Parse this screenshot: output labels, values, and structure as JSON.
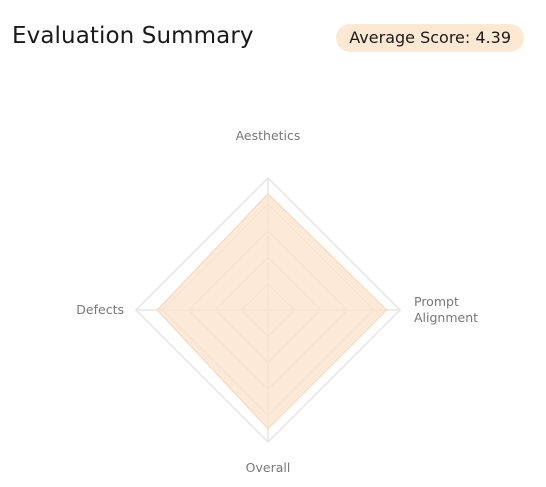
{
  "header": {
    "title": "Evaluation Summary",
    "badge_label": "Average Score: 4.39"
  },
  "chart_data": {
    "type": "radar",
    "axes": [
      "Aesthetics",
      "Prompt Alignment",
      "Overall",
      "Defects"
    ],
    "axis_label_lines": [
      [
        "Aesthetics"
      ],
      [
        "Prompt",
        "Alignment"
      ],
      [
        "Overall"
      ],
      [
        "Defects"
      ]
    ],
    "values": [
      4.4,
      4.5,
      4.5,
      4.2
    ],
    "max": 5,
    "rings": 5,
    "fill_color": "#fbe3cc",
    "grid_color": "#e6e6e6"
  }
}
